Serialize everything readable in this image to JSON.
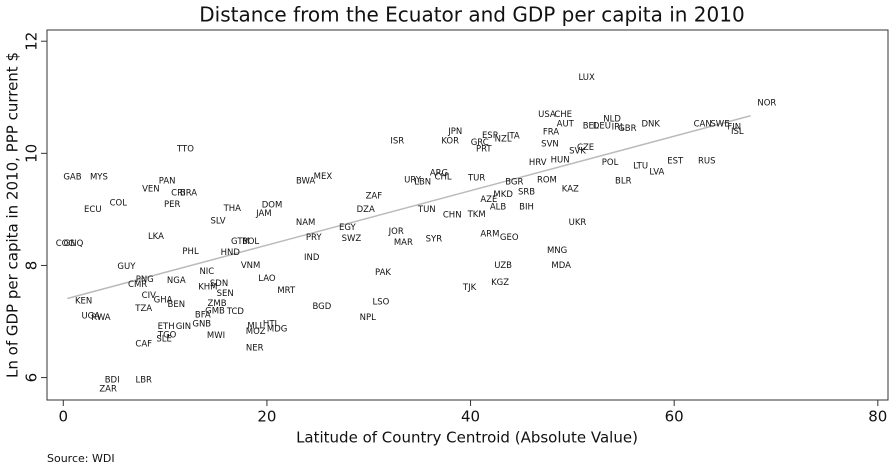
{
  "chart_data": {
    "type": "scatter",
    "title": "Distance from the Ecuator and GDP per capita in 2010",
    "x_label": "Latitude of Country Centroid (Absolute Value)",
    "y_label": "Ln of GDP per capita in 2010, PPP current $",
    "source": "Source: WDI",
    "xlim": [
      -1.6,
      81
    ],
    "ylim": [
      5.6,
      12.2
    ],
    "xticks": [
      0,
      20,
      40,
      60,
      80
    ],
    "yticks": [
      6,
      8,
      10,
      12
    ],
    "fit_line": {
      "x": [
        0.4,
        67.5
      ],
      "y": [
        7.41,
        10.67
      ],
      "color": "#bbbbbb"
    },
    "labels": [
      "LUX",
      "NOR",
      "USA",
      "CHE",
      "AUT",
      "NLD",
      "IRL",
      "BEL",
      "DEU",
      "GBR",
      "DNK",
      "CAN",
      "SWE",
      "FIN",
      "ISL",
      "JPN",
      "ESP",
      "ITA",
      "NZL",
      "KOR",
      "GRC",
      "PRT",
      "ISR",
      "FRA",
      "SVN",
      "SVK",
      "CZE",
      "HRV",
      "HUN",
      "POL",
      "LTU",
      "EST",
      "LVA",
      "RUS",
      "BLR",
      "ROM",
      "KAZ",
      "TUR",
      "BGR",
      "SRB",
      "MKD",
      "AZE",
      "ALB",
      "BIH",
      "UKR",
      "ARG",
      "CHL",
      "URY",
      "LBN",
      "TUN",
      "CHN",
      "TKM",
      "ARM",
      "GEO",
      "MNG",
      "UZB",
      "MDA",
      "KGZ",
      "TJK",
      "SYR",
      "JOR",
      "MAR",
      "EGY",
      "DZA",
      "ZAF",
      "SWZ",
      "PAK",
      "LSO",
      "NPL",
      "BGD",
      "MEX",
      "BWA",
      "NAM",
      "PRY",
      "IND",
      "TTO",
      "GAB",
      "MYS",
      "PAN",
      "VEN",
      "CRI",
      "BRA",
      "PER",
      "COL",
      "ECU",
      "THA",
      "DOM",
      "JAM",
      "SLV",
      "LKA",
      "GTM",
      "BOL",
      "HND",
      "PHL",
      "COG",
      "GNQ",
      "GUY",
      "PNG",
      "CMR",
      "NGA",
      "NIC",
      "KHM",
      "SDN",
      "SEN",
      "VNM",
      "LAO",
      "MRT",
      "CIV",
      "GHA",
      "BEN",
      "TZA",
      "KEN",
      "UGA",
      "RWA",
      "ZMB",
      "BFA",
      "GMB",
      "TCD",
      "GNB",
      "GIN",
      "ETH",
      "TGO",
      "SLE",
      "CAF",
      "MWI",
      "MLI",
      "HTI",
      "MOZ",
      "MDG",
      "NER",
      "BDI",
      "LBR",
      "ZAR"
    ],
    "x": [
      51.4,
      69.1,
      47.5,
      49.1,
      49.3,
      53.9,
      54.5,
      51.8,
      52.9,
      55.4,
      57.7,
      62.8,
      64.5,
      65.9,
      66.2,
      38.5,
      41.9,
      44.2,
      43.2,
      38.0,
      40.9,
      41.3,
      32.8,
      47.9,
      47.8,
      50.5,
      51.3,
      46.6,
      48.8,
      53.7,
      56.7,
      60.1,
      58.3,
      63.2,
      55.0,
      47.5,
      49.8,
      40.6,
      44.3,
      45.5,
      43.2,
      41.8,
      42.7,
      45.5,
      50.5,
      36.9,
      37.3,
      34.3,
      35.3,
      35.7,
      38.2,
      40.6,
      41.9,
      43.8,
      48.5,
      43.2,
      48.9,
      42.9,
      39.9,
      36.4,
      32.7,
      33.4,
      27.9,
      29.7,
      30.5,
      28.3,
      31.4,
      31.2,
      29.9,
      25.4,
      25.5,
      23.8,
      23.8,
      24.6,
      24.4,
      12.0,
      0.9,
      3.5,
      10.2,
      8.6,
      11.3,
      12.3,
      10.7,
      5.4,
      2.9,
      16.6,
      20.5,
      19.7,
      15.2,
      9.1,
      17.4,
      18.4,
      16.4,
      12.5,
      0.2,
      1.0,
      6.2,
      8.0,
      7.3,
      11.1,
      14.1,
      14.2,
      15.3,
      15.9,
      18.4,
      20.0,
      21.9,
      8.4,
      9.8,
      11.1,
      7.9,
      2.0,
      2.7,
      3.7,
      15.1,
      13.7,
      14.9,
      16.9,
      13.6,
      11.8,
      10.1,
      10.2,
      9.9,
      7.9,
      15.0,
      18.8,
      20.3,
      18.9,
      21.0,
      18.8,
      4.8,
      7.9,
      4.4
    ],
    "y": [
      11.35,
      10.9,
      10.69,
      10.69,
      10.52,
      10.61,
      10.47,
      10.49,
      10.49,
      10.44,
      10.52,
      10.52,
      10.52,
      10.47,
      10.39,
      10.39,
      10.32,
      10.31,
      10.26,
      10.22,
      10.19,
      10.08,
      10.22,
      10.38,
      10.17,
      10.04,
      10.1,
      9.84,
      9.88,
      9.84,
      9.77,
      9.86,
      9.67,
      9.86,
      9.51,
      9.52,
      9.36,
      9.56,
      9.49,
      9.31,
      9.27,
      9.18,
      9.04,
      9.04,
      8.77,
      9.65,
      9.58,
      9.52,
      9.49,
      9.0,
      8.9,
      8.91,
      8.56,
      8.5,
      8.27,
      8.0,
      8.0,
      7.7,
      7.61,
      8.47,
      8.61,
      8.41,
      8.68,
      9.0,
      9.24,
      8.48,
      7.87,
      7.35,
      7.07,
      7.27,
      9.59,
      9.51,
      8.77,
      8.5,
      8.14,
      10.08,
      9.58,
      9.58,
      9.51,
      9.36,
      9.29,
      9.29,
      9.09,
      9.11,
      9.0,
      9.02,
      9.08,
      8.93,
      8.79,
      8.52,
      8.43,
      8.43,
      8.23,
      8.25,
      8.39,
      8.39,
      7.98,
      7.75,
      7.66,
      7.73,
      7.89,
      7.62,
      7.68,
      7.5,
      8.0,
      7.77,
      7.55,
      7.46,
      7.38,
      7.3,
      7.23,
      7.37,
      7.1,
      7.07,
      7.32,
      7.12,
      7.19,
      7.18,
      6.96,
      6.91,
      6.91,
      6.76,
      6.69,
      6.6,
      6.75,
      6.92,
      6.96,
      6.82,
      6.87,
      6.53,
      5.96,
      5.96,
      5.8
    ]
  }
}
